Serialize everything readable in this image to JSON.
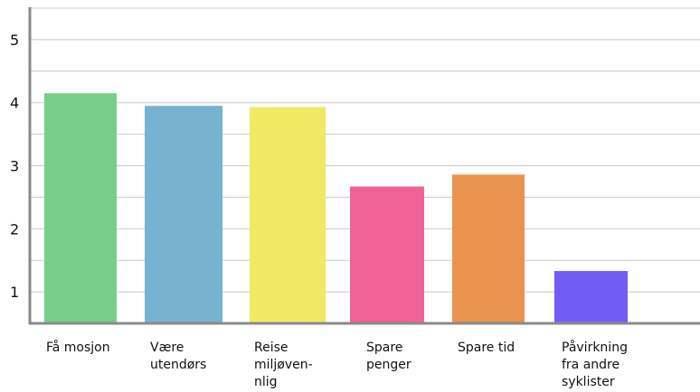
{
  "chart_data": {
    "type": "bar",
    "categories": [
      [
        "Få mosjon"
      ],
      [
        "Være",
        "utendørs"
      ],
      [
        "Reise",
        "miljøven-",
        "nlig"
      ],
      [
        "Spare",
        "penger"
      ],
      [
        "Spare tid"
      ],
      [
        "Påvirkning",
        "fra andre",
        "syklister"
      ]
    ],
    "values": [
      4.15,
      3.95,
      3.93,
      2.67,
      2.86,
      1.33
    ],
    "colors": [
      "#77cf8a",
      "#77b3d0",
      "#f1e963",
      "#f06397",
      "#ea9350",
      "#735cf6"
    ],
    "yticks": [
      1,
      2,
      3,
      4,
      5
    ],
    "ylim": [
      0.5,
      5.5
    ],
    "grid": true
  }
}
